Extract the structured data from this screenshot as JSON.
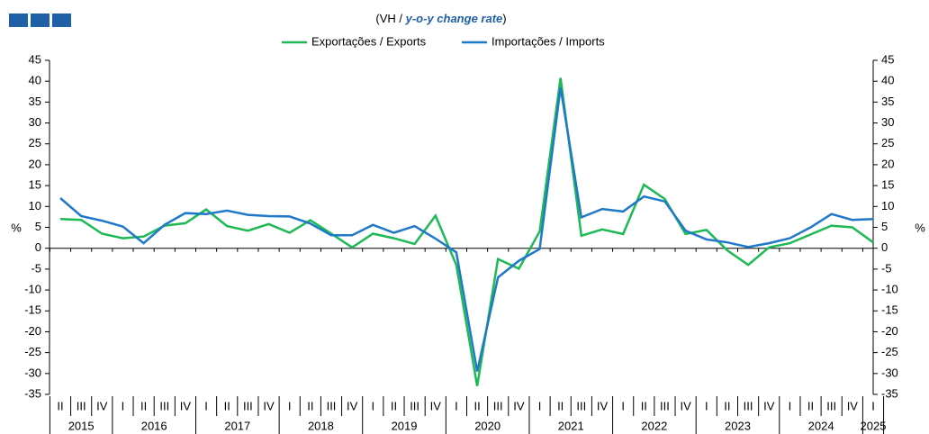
{
  "chart_data": {
    "type": "line",
    "title": {
      "plain": "(VH / ",
      "italic": "y-o-y change rate",
      "close": ")"
    },
    "ylabel": "%",
    "y2label": "%",
    "categories": [
      "II",
      "III",
      "IV",
      "I",
      "II",
      "III",
      "IV",
      "I",
      "II",
      "III",
      "IV",
      "I",
      "II",
      "III",
      "IV",
      "I",
      "II",
      "III",
      "IV",
      "I",
      "II",
      "III",
      "IV",
      "I",
      "II",
      "III",
      "IV",
      "I",
      "II",
      "III",
      "IV",
      "I",
      "II",
      "III",
      "IV",
      "I",
      "II",
      "III",
      "IV",
      "I"
    ],
    "years": [
      "2015",
      "2016",
      "2017",
      "2018",
      "2019",
      "2020",
      "2021",
      "2022",
      "2023",
      "2024",
      "2025"
    ],
    "series": [
      {
        "name": "Exportações / Exports",
        "color": "#1db954",
        "values": [
          7,
          6.8,
          3.5,
          2.4,
          2.8,
          5.4,
          6,
          9.3,
          5.3,
          4.2,
          5.8,
          3.7,
          6.7,
          3.5,
          0.2,
          3.5,
          2.4,
          1,
          7.8,
          -4,
          -33,
          -2.6,
          -4.9,
          4,
          40.8,
          3,
          4.5,
          3.4,
          15.2,
          11.8,
          3.4,
          4.4,
          -0.5,
          -4,
          0.2,
          1.2,
          3.3,
          5.4,
          5,
          1.4
        ]
      },
      {
        "name": "Importações / Imports",
        "color": "#1f78c8",
        "values": [
          12,
          7.7,
          6.6,
          5.2,
          1.2,
          5.6,
          8.4,
          8.2,
          9,
          8,
          7.7,
          7.6,
          5.9,
          3.1,
          3.1,
          5.6,
          3.7,
          5.3,
          2.3,
          -1,
          -29.5,
          -7,
          -3,
          -0.2,
          38.5,
          7.4,
          9.4,
          8.8,
          12.4,
          11.2,
          4.2,
          2.1,
          1.4,
          0.3,
          1.2,
          2.4,
          5,
          8.2,
          6.8,
          7
        ]
      }
    ],
    "ylim": [
      -35,
      45
    ],
    "yticks": [
      -35,
      -30,
      -25,
      -20,
      -15,
      -10,
      -5,
      0,
      5,
      10,
      15,
      20,
      25,
      30,
      35,
      40,
      45
    ],
    "y2lim": [
      -35,
      45
    ],
    "y2ticks": [
      -35,
      -30,
      -25,
      -20,
      -15,
      -10,
      -5,
      0,
      5,
      10,
      15,
      20,
      25,
      30,
      35,
      40,
      45
    ],
    "grid": false,
    "legend": "top"
  }
}
